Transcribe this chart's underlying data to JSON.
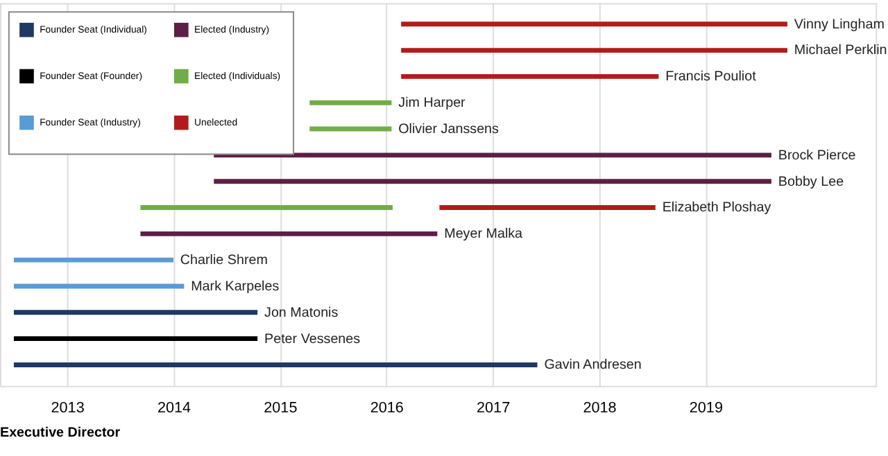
{
  "chart_data": {
    "type": "bar",
    "orientation": "horizontal",
    "annotations": [
      "Executive Director"
    ],
    "categories": [
      "Vinny Lingham",
      "Michael Perklin",
      "Francis Pouliot",
      "Jim Harper",
      "Olivier Janssens",
      "Brock Pierce",
      "Bobby Lee",
      "Elizabeth Ploshay",
      "Meyer Malka",
      "Charlie Shrem",
      "Mark Karpeles",
      "Jon Matonis",
      "Peter Vessenes",
      "Gavin Andresen"
    ],
    "series": [
      {
        "name": "Founder Seat (Individual)",
        "color": "#1f3864",
        "base": [
          null,
          null,
          null,
          null,
          null,
          null,
          null,
          null,
          null,
          null,
          null,
          2012.5,
          null,
          2012.5
        ],
        "values": [
          null,
          null,
          null,
          null,
          null,
          null,
          null,
          null,
          null,
          null,
          null,
          2.29,
          null,
          4.92
        ]
      },
      {
        "name": "Founder Seat (Founder)",
        "color": "#000000",
        "base": [
          null,
          null,
          null,
          null,
          null,
          null,
          null,
          null,
          null,
          null,
          null,
          null,
          2012.5,
          null
        ],
        "values": [
          null,
          null,
          null,
          null,
          null,
          null,
          null,
          null,
          null,
          null,
          null,
          null,
          2.29,
          null
        ]
      },
      {
        "name": "Founder Seat (Industry)",
        "color": "#5b9bd5",
        "base": [
          null,
          null,
          null,
          null,
          null,
          null,
          null,
          null,
          null,
          2012.5,
          2012.5,
          null,
          null,
          null
        ],
        "values": [
          null,
          null,
          null,
          null,
          null,
          null,
          null,
          null,
          null,
          1.5,
          1.6,
          null,
          null,
          null
        ]
      },
      {
        "name": "Elected (Industry)",
        "color": "#5c1f45",
        "base": [
          null,
          null,
          null,
          null,
          null,
          2014.38,
          2014.38,
          null,
          2013.69,
          null,
          null,
          null,
          null,
          null
        ],
        "values": [
          null,
          null,
          null,
          null,
          null,
          5.24,
          5.24,
          null,
          2.79,
          null,
          null,
          null,
          null,
          null
        ]
      },
      {
        "name": "Elected (Individuals)",
        "color": "#70ad47",
        "base": [
          null,
          null,
          null,
          2015.28,
          2015.28,
          null,
          null,
          2013.69,
          null,
          null,
          null,
          null,
          null,
          null
        ],
        "values": [
          null,
          null,
          null,
          0.77,
          0.77,
          null,
          null,
          2.37,
          null,
          null,
          null,
          null,
          null,
          null
        ]
      },
      {
        "name": "Unelected",
        "color": "#b31b1b",
        "base": [
          2016.14,
          2016.14,
          2016.14,
          null,
          null,
          null,
          null,
          2016.5,
          null,
          null,
          null,
          null,
          null,
          null
        ],
        "values": [
          3.63,
          3.63,
          2.42,
          null,
          null,
          null,
          null,
          2.03,
          null,
          null,
          null,
          null,
          null,
          null
        ]
      }
    ],
    "xlim": [
      2012.37,
      2020.6
    ],
    "xticks": [
      2013,
      2014,
      2015,
      2016,
      2017,
      2018,
      2019
    ],
    "grid": "x",
    "legend": "top left",
    "tick_labels": "x"
  }
}
